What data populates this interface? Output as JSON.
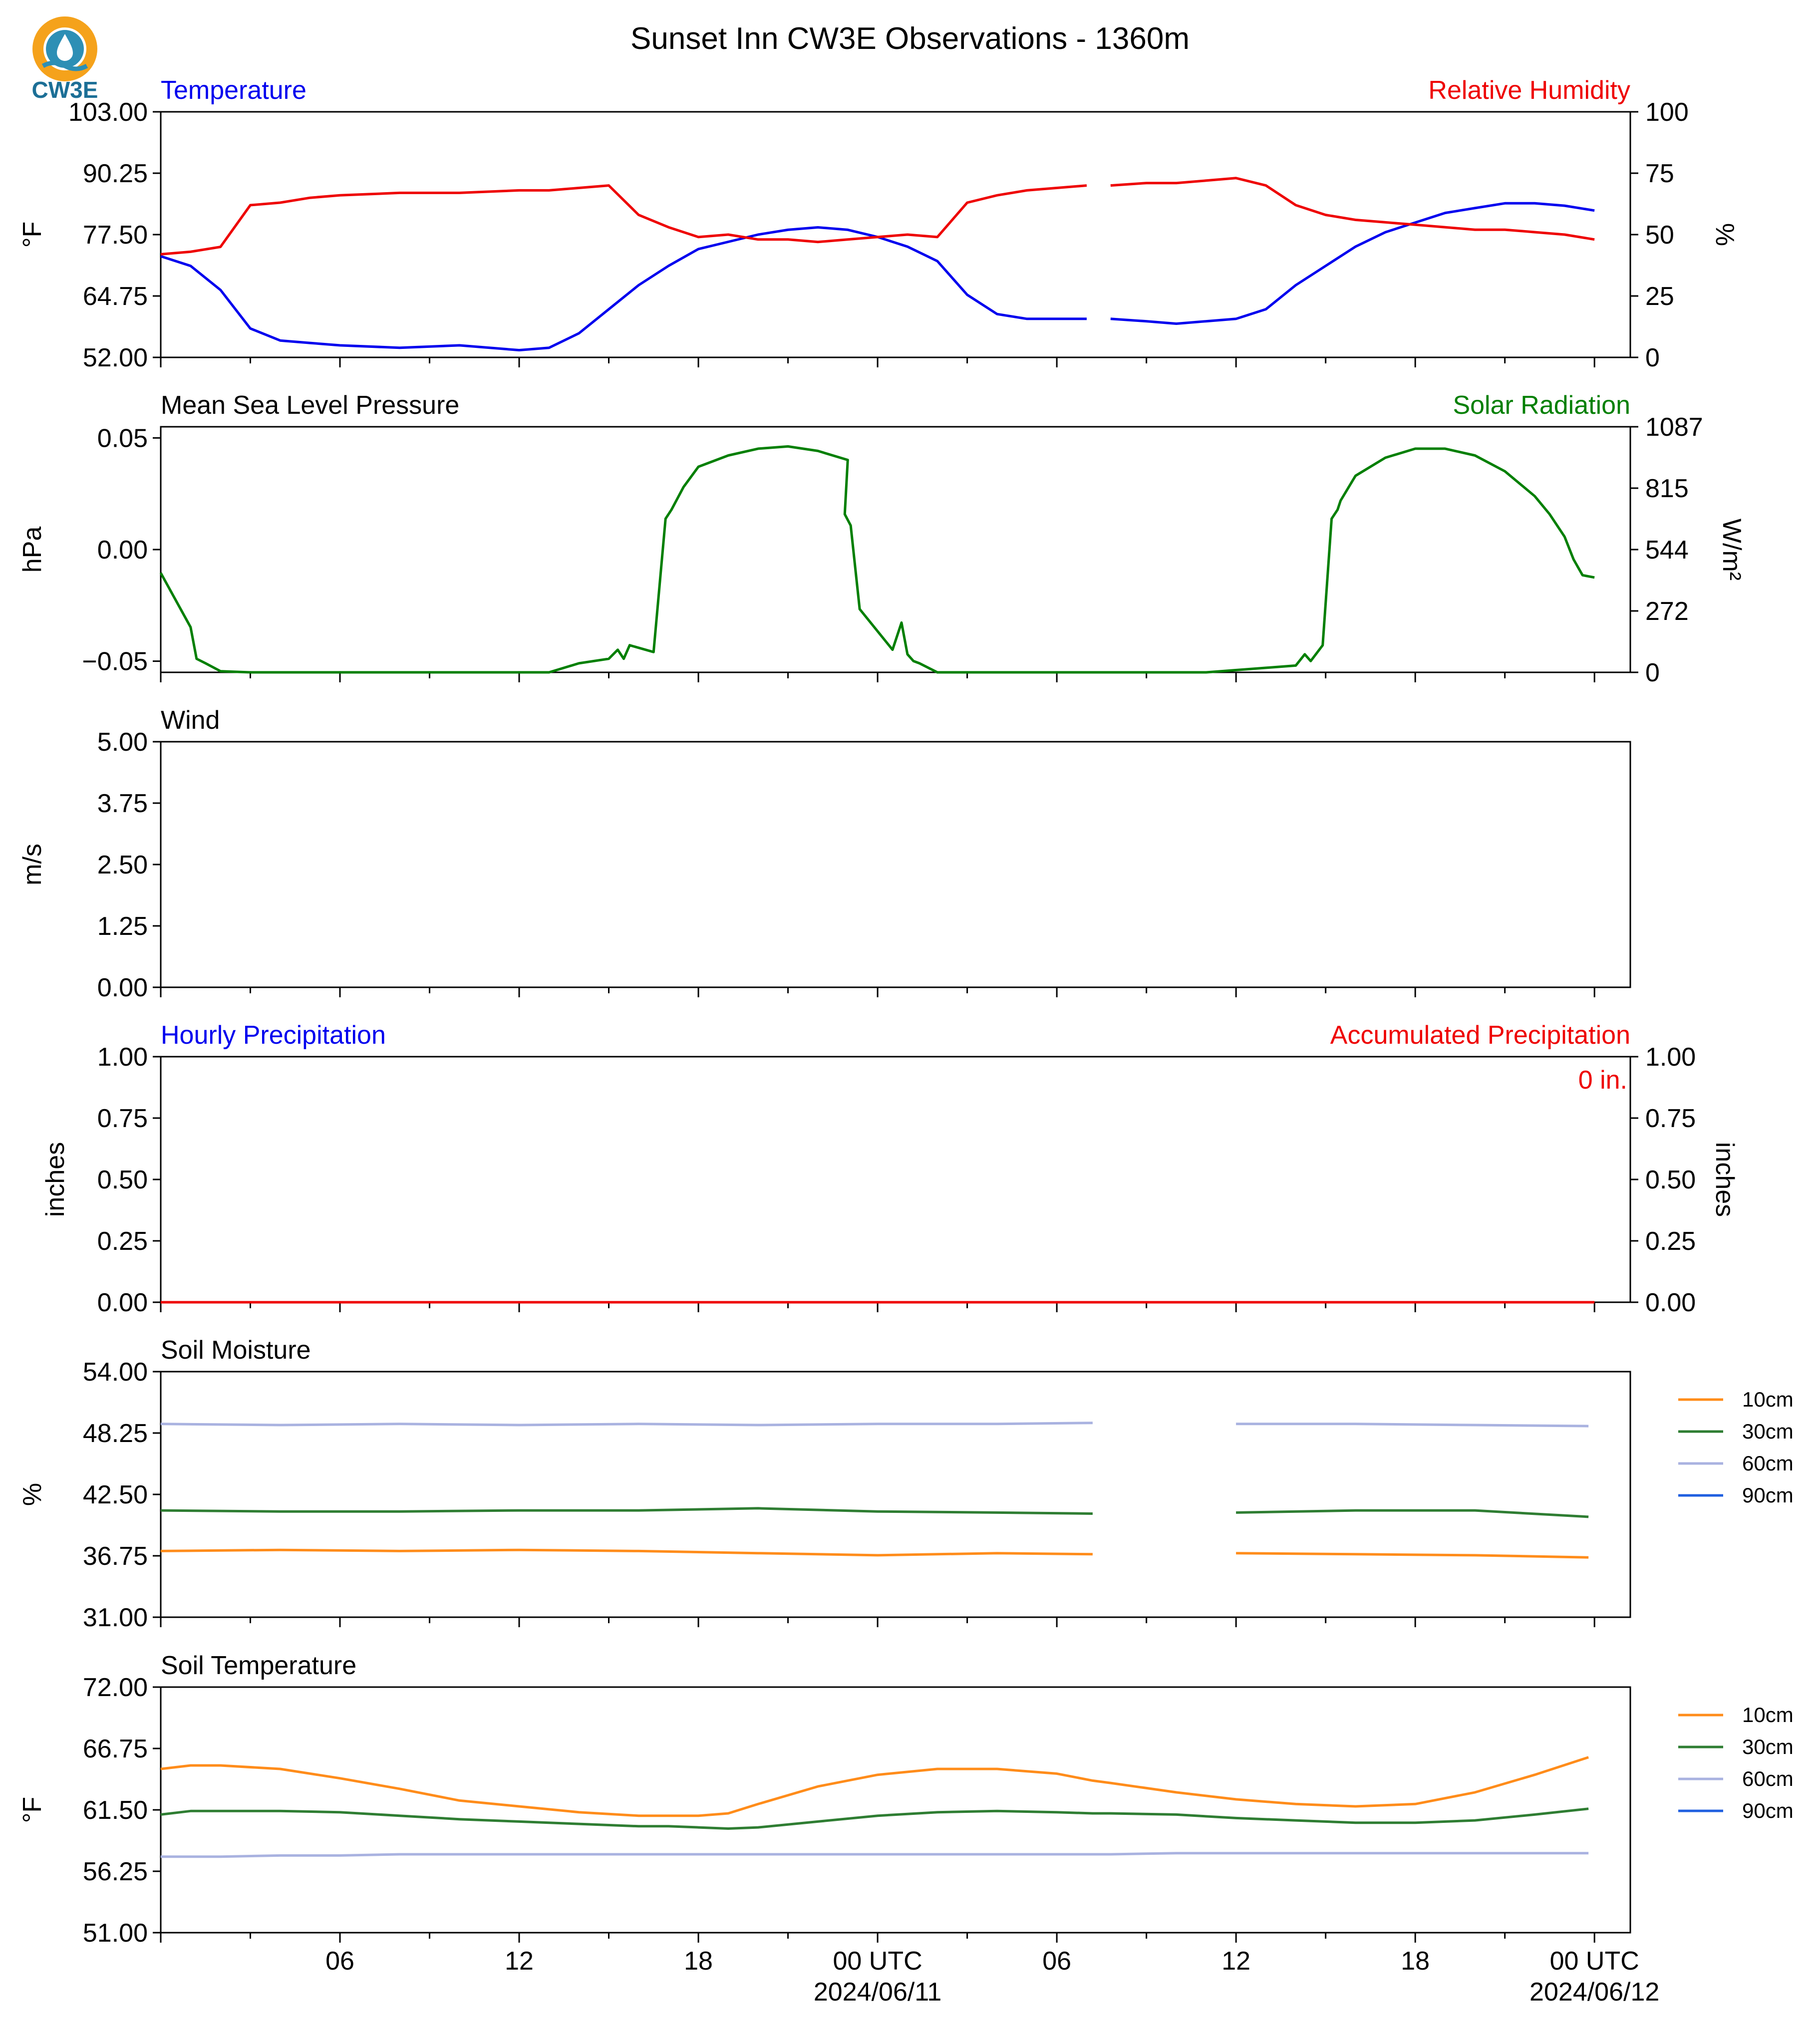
{
  "title": "Sunset Inn CW3E Observations - 1360m",
  "logo": {
    "text": "CW3E",
    "icon": "cw3e-drop-logo",
    "colors": {
      "orange": "#f5a21b",
      "blue": "#2d8fb5",
      "dark": "#1c6f96"
    }
  },
  "colors": {
    "blue": "#0000ee",
    "red": "#ee0000",
    "green": "#007f00",
    "black": "#000000",
    "soil10": "#ff8c1a",
    "soil30": "#2e7d32",
    "soil60": "#a9b2e0",
    "soil90": "#1f5fe0"
  },
  "x_axis": {
    "tick_labels": [
      "06",
      "12",
      "18",
      "00 UTC",
      "06",
      "12",
      "18",
      "00 UTC"
    ],
    "date_labels": [
      "2024/06/11",
      "2024/06/12"
    ]
  },
  "legend": [
    "10cm",
    "30cm",
    "60cm",
    "90cm"
  ],
  "chart_data": [
    {
      "name": "temperature-rh",
      "type": "line",
      "title_left": "Temperature",
      "title_right": "Relative Humidity",
      "ylabel_left": "°F",
      "ylabel_right": "%",
      "ylim_left": [
        52,
        103
      ],
      "ylim_right": [
        0,
        100
      ],
      "yticks_left": [
        "52.00",
        "64.75",
        "77.50",
        "90.25",
        "103.00"
      ],
      "yticks_right": [
        "0",
        "25",
        "50",
        "75",
        "100"
      ],
      "x_hours": [
        0,
        1,
        2,
        3,
        4,
        5,
        6,
        8,
        10,
        12,
        13,
        14,
        15,
        16,
        17,
        18,
        19,
        20,
        21,
        22,
        23,
        24,
        25,
        26,
        27,
        28,
        29,
        30,
        31,
        31.2,
        31.8,
        33,
        34,
        35,
        36,
        37,
        38,
        39,
        40,
        41,
        42,
        43,
        44,
        45,
        46,
        47,
        48
      ],
      "series": [
        {
          "name": "Temperature",
          "axis": "left",
          "values": [
            73,
            71,
            66,
            58,
            55.5,
            55,
            54.5,
            54,
            54.5,
            53.5,
            54,
            57,
            62,
            67,
            71,
            74.5,
            76,
            77.5,
            78.5,
            79,
            78.5,
            77,
            75,
            72,
            65,
            61,
            60,
            60,
            60,
            null,
            60,
            59.5,
            59,
            59.5,
            60,
            62,
            67,
            71,
            75,
            78,
            80,
            82,
            83,
            84,
            84,
            83.5,
            82.5
          ]
        },
        {
          "name": "Relative Humidity",
          "axis": "right",
          "values": [
            42,
            43,
            45,
            62,
            63,
            65,
            66,
            67,
            67,
            68,
            68,
            69,
            70,
            58,
            53,
            49,
            50,
            48,
            48,
            47,
            48,
            49,
            50,
            49,
            63,
            66,
            68,
            69,
            70,
            null,
            70,
            71,
            71,
            72,
            73,
            70,
            62,
            58,
            56,
            55,
            54,
            53,
            52,
            52,
            51,
            50,
            48
          ]
        }
      ]
    },
    {
      "name": "pressure-solar",
      "type": "line",
      "title_left": "Mean Sea Level Pressure",
      "title_right": "Solar Radiation",
      "ylabel_left": "hPa",
      "ylabel_right": "W/m²",
      "ylim_left": [
        -0.055,
        0.055
      ],
      "ylim_right": [
        0,
        1087
      ],
      "yticks_left": [
        "−0.05",
        "0.00",
        "0.05"
      ],
      "yticks_right": [
        "0",
        "272",
        "544",
        "815",
        "1087"
      ],
      "x_hours": [
        0,
        1,
        1.2,
        1.5,
        2,
        3,
        4,
        10,
        12,
        13,
        14,
        15,
        15.3,
        15.5,
        15.7,
        16.5,
        16.9,
        17.1,
        17.5,
        18,
        19,
        20,
        21,
        22,
        23,
        22.9,
        23.1,
        23.4,
        24.5,
        24.8,
        25,
        25.2,
        25.4,
        26,
        27,
        28,
        31,
        31.8,
        35,
        38,
        38.3,
        38.5,
        38.9,
        39.2,
        39.4,
        39.5,
        40,
        41,
        42,
        43,
        44,
        45,
        46,
        46.5,
        47,
        47.3,
        47.6,
        48
      ],
      "series": [
        {
          "name": "Solar Radiation",
          "axis": "right",
          "values": [
            440,
            200,
            60,
            40,
            5,
            0,
            0,
            0,
            0,
            0,
            40,
            60,
            100,
            60,
            120,
            90,
            680,
            720,
            820,
            910,
            960,
            990,
            1000,
            980,
            940,
            700,
            650,
            280,
            100,
            220,
            80,
            50,
            40,
            0,
            0,
            0,
            0,
            0,
            0,
            30,
            80,
            50,
            120,
            680,
            720,
            760,
            870,
            950,
            990,
            990,
            960,
            890,
            780,
            700,
            600,
            500,
            430,
            420
          ]
        }
      ]
    },
    {
      "name": "wind",
      "type": "line",
      "title_left": "Wind",
      "ylabel_left": "m/s",
      "ylim_left": [
        0,
        5
      ],
      "yticks_left": [
        "0.00",
        "1.25",
        "2.50",
        "3.75",
        "5.00"
      ],
      "series": []
    },
    {
      "name": "precipitation",
      "type": "line",
      "title_left": "Hourly Precipitation",
      "title_right": "Accumulated Precipitation",
      "ylabel_left": "inches",
      "ylabel_right": "inches",
      "ylim_left": [
        0,
        1
      ],
      "ylim_right": [
        0,
        1
      ],
      "yticks_left": [
        "0.00",
        "0.25",
        "0.50",
        "0.75",
        "1.00"
      ],
      "yticks_right": [
        "0.00",
        "0.25",
        "0.50",
        "0.75",
        "1.00"
      ],
      "annotation": "0 in.",
      "x_hours": [
        0,
        48
      ],
      "series": [
        {
          "name": "Accumulated Precipitation",
          "axis": "right",
          "values": [
            0,
            0
          ]
        }
      ]
    },
    {
      "name": "soil-moisture",
      "type": "line",
      "title_left": "Soil Moisture",
      "ylabel_left": "%",
      "ylim_left": [
        31,
        54
      ],
      "yticks_left": [
        "31.00",
        "36.75",
        "42.50",
        "48.25",
        "54.00"
      ],
      "x_hours": [
        0,
        4,
        8,
        12,
        16,
        20,
        24,
        28,
        31.2,
        31.8,
        36,
        40,
        44,
        47.8
      ],
      "series": [
        {
          "name": "10cm",
          "values": [
            37.2,
            37.3,
            37.2,
            37.3,
            37.2,
            37.0,
            36.8,
            37.0,
            36.9,
            null,
            37.0,
            36.9,
            36.8,
            36.6
          ]
        },
        {
          "name": "30cm",
          "values": [
            41.0,
            40.9,
            40.9,
            41.0,
            41.0,
            41.2,
            40.9,
            40.8,
            40.7,
            null,
            40.8,
            41.0,
            41.0,
            40.4
          ]
        },
        {
          "name": "60cm",
          "values": [
            49.1,
            49.0,
            49.1,
            49.0,
            49.1,
            49.0,
            49.1,
            49.1,
            49.2,
            null,
            49.1,
            49.1,
            49.0,
            48.9
          ]
        },
        {
          "name": "90cm",
          "values": []
        }
      ]
    },
    {
      "name": "soil-temperature",
      "type": "line",
      "title_left": "Soil Temperature",
      "ylabel_left": "°F",
      "ylim_left": [
        51,
        72
      ],
      "yticks_left": [
        "51.00",
        "56.25",
        "61.50",
        "66.75",
        "72.00"
      ],
      "x_hours": [
        0,
        1,
        2,
        4,
        6,
        8,
        10,
        12,
        14,
        16,
        17,
        18,
        19,
        20,
        22,
        24,
        26,
        28,
        30,
        31.2,
        31.8,
        34,
        36,
        38,
        40,
        42,
        44,
        46,
        47.8
      ],
      "series": [
        {
          "name": "10cm",
          "values": [
            65.0,
            65.3,
            65.3,
            65.0,
            64.2,
            63.3,
            62.3,
            61.8,
            61.3,
            61.0,
            61.0,
            61.0,
            61.2,
            62.0,
            63.5,
            64.5,
            65.0,
            65.0,
            64.6,
            64.0,
            63.8,
            63.0,
            62.4,
            62.0,
            61.8,
            62.0,
            63.0,
            64.5,
            66.0
          ]
        },
        {
          "name": "30cm",
          "values": [
            61.1,
            61.4,
            61.4,
            61.4,
            61.3,
            61.0,
            60.7,
            60.5,
            60.3,
            60.1,
            60.1,
            60.0,
            59.9,
            60.0,
            60.5,
            61.0,
            61.3,
            61.4,
            61.3,
            61.2,
            61.2,
            61.1,
            60.8,
            60.6,
            60.4,
            60.4,
            60.6,
            61.1,
            61.6
          ]
        },
        {
          "name": "60cm",
          "values": [
            57.5,
            57.5,
            57.5,
            57.6,
            57.6,
            57.7,
            57.7,
            57.7,
            57.7,
            57.7,
            57.7,
            57.7,
            57.7,
            57.7,
            57.7,
            57.7,
            57.7,
            57.7,
            57.7,
            57.7,
            57.7,
            57.8,
            57.8,
            57.8,
            57.8,
            57.8,
            57.8,
            57.8,
            57.8
          ]
        },
        {
          "name": "90cm",
          "values": []
        }
      ]
    }
  ]
}
